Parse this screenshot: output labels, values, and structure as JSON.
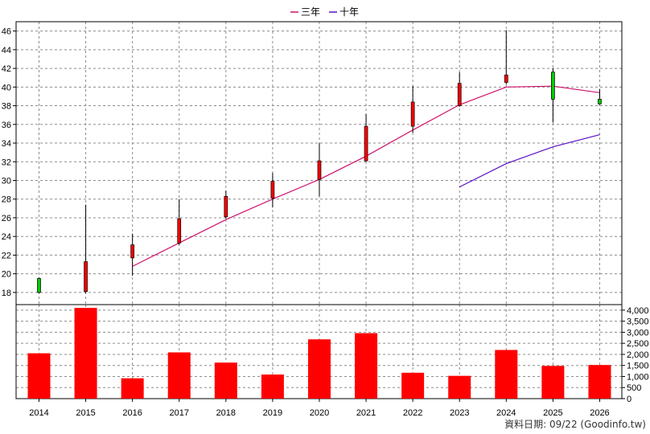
{
  "chart_data": {
    "type": "candlestick",
    "legend": [
      {
        "label": "三年",
        "color": "#d0106a"
      },
      {
        "label": "十年",
        "color": "#5a10c8"
      }
    ],
    "x": [
      "2014",
      "2015",
      "2016",
      "2017",
      "2018",
      "2019",
      "2020",
      "2021",
      "2022",
      "2023",
      "2024",
      "2025",
      "2026"
    ],
    "price_axis": {
      "ylim": [
        16.7,
        47.0
      ],
      "ticks": [
        18,
        20,
        22,
        24,
        26,
        28,
        30,
        32,
        34,
        36,
        38,
        40,
        42,
        44,
        46
      ]
    },
    "candles": [
      {
        "year": "2014",
        "open": 19.5,
        "close": 18.0,
        "high": 19.6,
        "low": 17.9,
        "color": "#00cc00"
      },
      {
        "year": "2015",
        "open": 18.1,
        "close": 21.3,
        "high": 27.4,
        "low": 17.9,
        "color": "#ff0000"
      },
      {
        "year": "2016",
        "open": 21.7,
        "close": 23.1,
        "high": 24.3,
        "low": 19.8,
        "color": "#ff0000"
      },
      {
        "year": "2017",
        "open": 23.3,
        "close": 25.9,
        "high": 28.0,
        "low": 23.1,
        "color": "#ff0000"
      },
      {
        "year": "2018",
        "open": 26.1,
        "close": 28.3,
        "high": 28.9,
        "low": 25.9,
        "color": "#ff0000"
      },
      {
        "year": "2019",
        "open": 28.1,
        "close": 29.9,
        "high": 30.8,
        "low": 27.1,
        "color": "#ff0000"
      },
      {
        "year": "2020",
        "open": 30.1,
        "close": 32.1,
        "high": 34.0,
        "low": 28.3,
        "color": "#ff0000"
      },
      {
        "year": "2021",
        "open": 32.1,
        "close": 35.8,
        "high": 37.1,
        "low": 32.0,
        "color": "#ff0000"
      },
      {
        "year": "2022",
        "open": 35.8,
        "close": 38.4,
        "high": 40.1,
        "low": 35.1,
        "color": "#ff0000"
      },
      {
        "year": "2023",
        "open": 38.0,
        "close": 40.4,
        "high": 41.6,
        "low": 37.9,
        "color": "#ff0000"
      },
      {
        "year": "2024",
        "open": 40.5,
        "close": 41.3,
        "high": 46.1,
        "low": 40.3,
        "color": "#ff0000"
      },
      {
        "year": "2025",
        "open": 41.6,
        "close": 38.7,
        "high": 42.0,
        "low": 36.2,
        "color": "#00cc00"
      },
      {
        "year": "2026",
        "open": 38.7,
        "close": 38.2,
        "high": 39.8,
        "low": 38.1,
        "color": "#00cc00"
      }
    ],
    "ma_series": [
      {
        "name": "三年",
        "color": "#d0106a",
        "points": [
          {
            "year": "2016",
            "value": 20.8
          },
          {
            "year": "2017",
            "value": 23.3
          },
          {
            "year": "2018",
            "value": 25.8
          },
          {
            "year": "2019",
            "value": 28.0
          },
          {
            "year": "2020",
            "value": 30.1
          },
          {
            "year": "2021",
            "value": 32.6
          },
          {
            "year": "2022",
            "value": 35.4
          },
          {
            "year": "2023",
            "value": 38.1
          },
          {
            "year": "2024",
            "value": 40.0
          },
          {
            "year": "2025",
            "value": 40.1
          },
          {
            "year": "2026",
            "value": 39.4
          }
        ]
      },
      {
        "name": "十年",
        "color": "#5a10c8",
        "points": [
          {
            "year": "2023",
            "value": 29.3
          },
          {
            "year": "2024",
            "value": 31.8
          },
          {
            "year": "2025",
            "value": 33.6
          },
          {
            "year": "2026",
            "value": 34.9
          }
        ]
      }
    ],
    "volume_axis": {
      "ylim": [
        0,
        4250
      ],
      "ticks": [
        0,
        500,
        1000,
        1500,
        2000,
        2500,
        3000,
        3500,
        4000
      ],
      "tick_labels": [
        "0",
        "500",
        "1,000",
        "1,500",
        "2,000",
        "2,500",
        "3,000",
        "3,500",
        "4,000"
      ]
    },
    "volume": [
      {
        "year": "2014",
        "value": 2050
      },
      {
        "year": "2015",
        "value": 4100
      },
      {
        "year": "2016",
        "value": 920
      },
      {
        "year": "2017",
        "value": 2090
      },
      {
        "year": "2018",
        "value": 1630
      },
      {
        "year": "2019",
        "value": 1090
      },
      {
        "year": "2020",
        "value": 2680
      },
      {
        "year": "2021",
        "value": 2960
      },
      {
        "year": "2022",
        "value": 1170
      },
      {
        "year": "2023",
        "value": 1030
      },
      {
        "year": "2024",
        "value": 2200
      },
      {
        "year": "2025",
        "value": 1480
      },
      {
        "year": "2026",
        "value": 1520
      }
    ],
    "volume_color": "#ff0000",
    "grid": true,
    "legend_position": "top-center"
  },
  "footer": {
    "label": "資料日期: 09/22 (Goodinfo.tw)"
  }
}
